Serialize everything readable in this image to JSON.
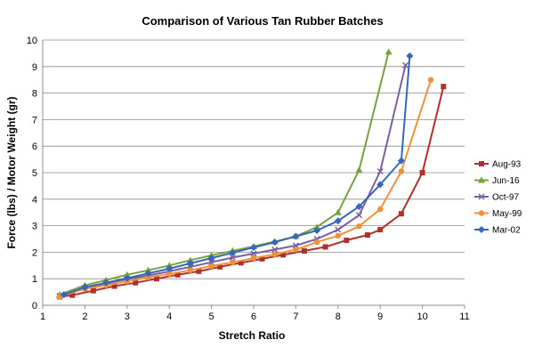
{
  "chart_data": {
    "type": "line",
    "title": "Comparison of Various Tan Rubber Batches",
    "xlabel": "Stretch Ratio",
    "ylabel": "Force (lbs) / Motor Weight (gr)",
    "xlim": [
      1,
      11
    ],
    "ylim": [
      0,
      10
    ],
    "xticks": [
      1,
      2,
      3,
      4,
      5,
      6,
      7,
      8,
      9,
      10,
      11
    ],
    "yticks": [
      0,
      1,
      2,
      3,
      4,
      5,
      6,
      7,
      8,
      9,
      10
    ],
    "grid": "horizontal",
    "legend_position": "right",
    "series": [
      {
        "name": "Aug-93",
        "color": "#b0302e",
        "marker": "square",
        "points": [
          [
            1.4,
            0.32
          ],
          [
            1.7,
            0.38
          ],
          [
            2.2,
            0.55
          ],
          [
            2.7,
            0.72
          ],
          [
            3.2,
            0.85
          ],
          [
            3.7,
            1.0
          ],
          [
            4.2,
            1.15
          ],
          [
            4.7,
            1.28
          ],
          [
            5.2,
            1.45
          ],
          [
            5.7,
            1.6
          ],
          [
            6.2,
            1.75
          ],
          [
            6.7,
            1.9
          ],
          [
            7.2,
            2.05
          ],
          [
            7.7,
            2.2
          ],
          [
            8.2,
            2.45
          ],
          [
            8.7,
            2.65
          ],
          [
            9.0,
            2.85
          ],
          [
            9.5,
            3.45
          ],
          [
            10.0,
            5.0
          ],
          [
            10.5,
            8.25
          ]
        ]
      },
      {
        "name": "Jun-16",
        "color": "#77a241",
        "marker": "triangle",
        "points": [
          [
            1.4,
            0.4
          ],
          [
            2.0,
            0.75
          ],
          [
            2.5,
            0.95
          ],
          [
            3.0,
            1.15
          ],
          [
            3.5,
            1.32
          ],
          [
            4.0,
            1.5
          ],
          [
            4.5,
            1.7
          ],
          [
            5.0,
            1.88
          ],
          [
            5.5,
            2.05
          ],
          [
            6.0,
            2.22
          ],
          [
            6.5,
            2.4
          ],
          [
            7.0,
            2.6
          ],
          [
            7.5,
            2.95
          ],
          [
            8.0,
            3.5
          ],
          [
            8.5,
            5.1
          ],
          [
            9.2,
            9.55
          ]
        ]
      },
      {
        "name": "Oct-97",
        "color": "#7b5fa0",
        "marker": "x",
        "points": [
          [
            1.4,
            0.35
          ],
          [
            2.0,
            0.65
          ],
          [
            2.5,
            0.82
          ],
          [
            3.0,
            0.98
          ],
          [
            3.5,
            1.12
          ],
          [
            4.0,
            1.28
          ],
          [
            4.5,
            1.45
          ],
          [
            5.0,
            1.62
          ],
          [
            5.5,
            1.8
          ],
          [
            6.0,
            1.95
          ],
          [
            6.5,
            2.1
          ],
          [
            7.0,
            2.25
          ],
          [
            7.5,
            2.5
          ],
          [
            8.0,
            2.85
          ],
          [
            8.5,
            3.4
          ],
          [
            9.0,
            5.05
          ],
          [
            9.6,
            9.05
          ]
        ]
      },
      {
        "name": "May-99",
        "color": "#f0913a",
        "marker": "circle",
        "points": [
          [
            1.4,
            0.33
          ],
          [
            2.0,
            0.62
          ],
          [
            2.5,
            0.75
          ],
          [
            3.0,
            0.9
          ],
          [
            3.5,
            1.05
          ],
          [
            4.0,
            1.18
          ],
          [
            4.5,
            1.32
          ],
          [
            5.0,
            1.48
          ],
          [
            5.5,
            1.62
          ],
          [
            6.0,
            1.78
          ],
          [
            6.5,
            1.92
          ],
          [
            7.0,
            2.1
          ],
          [
            7.5,
            2.38
          ],
          [
            8.0,
            2.62
          ],
          [
            8.5,
            2.98
          ],
          [
            9.0,
            3.62
          ],
          [
            9.5,
            5.05
          ],
          [
            10.2,
            8.5
          ]
        ]
      },
      {
        "name": "Mar-02",
        "color": "#3568b8",
        "marker": "diamond",
        "points": [
          [
            1.5,
            0.4
          ],
          [
            2.0,
            0.68
          ],
          [
            2.5,
            0.85
          ],
          [
            3.0,
            1.02
          ],
          [
            3.5,
            1.2
          ],
          [
            4.0,
            1.38
          ],
          [
            4.5,
            1.58
          ],
          [
            5.0,
            1.78
          ],
          [
            5.5,
            1.98
          ],
          [
            6.0,
            2.18
          ],
          [
            6.5,
            2.38
          ],
          [
            7.0,
            2.6
          ],
          [
            7.5,
            2.82
          ],
          [
            8.0,
            3.18
          ],
          [
            8.5,
            3.72
          ],
          [
            9.0,
            4.55
          ],
          [
            9.5,
            5.45
          ],
          [
            9.7,
            9.4
          ]
        ]
      }
    ]
  }
}
